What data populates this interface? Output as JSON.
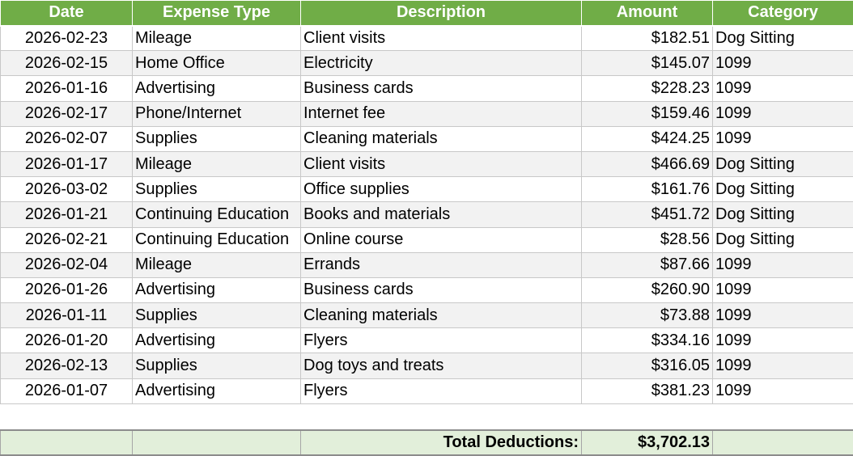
{
  "headers": [
    "Date",
    "Expense Type",
    "Description",
    "Amount",
    "Category"
  ],
  "rows": [
    [
      "2026-02-23",
      "Mileage",
      "Client visits",
      "$182.51",
      "Dog Sitting"
    ],
    [
      "2026-02-15",
      "Home Office",
      "Electricity",
      "$145.07",
      "1099"
    ],
    [
      "2026-01-16",
      "Advertising",
      "Business cards",
      "$228.23",
      "1099"
    ],
    [
      "2026-02-17",
      "Phone/Internet",
      "Internet fee",
      "$159.46",
      "1099"
    ],
    [
      "2026-02-07",
      "Supplies",
      "Cleaning materials",
      "$424.25",
      "1099"
    ],
    [
      "2026-01-17",
      "Mileage",
      "Client visits",
      "$466.69",
      "Dog Sitting"
    ],
    [
      "2026-03-02",
      "Supplies",
      "Office supplies",
      "$161.76",
      "Dog Sitting"
    ],
    [
      "2026-01-21",
      "Continuing Education",
      "Books and materials",
      "$451.72",
      "Dog Sitting"
    ],
    [
      "2026-02-21",
      "Continuing Education",
      "Online course",
      "$28.56",
      "Dog Sitting"
    ],
    [
      "2026-02-04",
      "Mileage",
      "Errands",
      "$87.66",
      "1099"
    ],
    [
      "2026-01-26",
      "Advertising",
      "Business cards",
      "$260.90",
      "1099"
    ],
    [
      "2026-01-11",
      "Supplies",
      "Cleaning materials",
      "$73.88",
      "1099"
    ],
    [
      "2026-01-20",
      "Advertising",
      "Flyers",
      "$334.16",
      "1099"
    ],
    [
      "2026-02-13",
      "Supplies",
      "Dog toys and treats",
      "$316.05",
      "1099"
    ],
    [
      "2026-01-07",
      "Advertising",
      "Flyers",
      "$381.23",
      "1099"
    ]
  ],
  "total": {
    "label": "Total Deductions:",
    "value": "$3,702.13"
  },
  "colors": {
    "header_bg": "#70ad47",
    "total_bg": "#e2efda"
  }
}
